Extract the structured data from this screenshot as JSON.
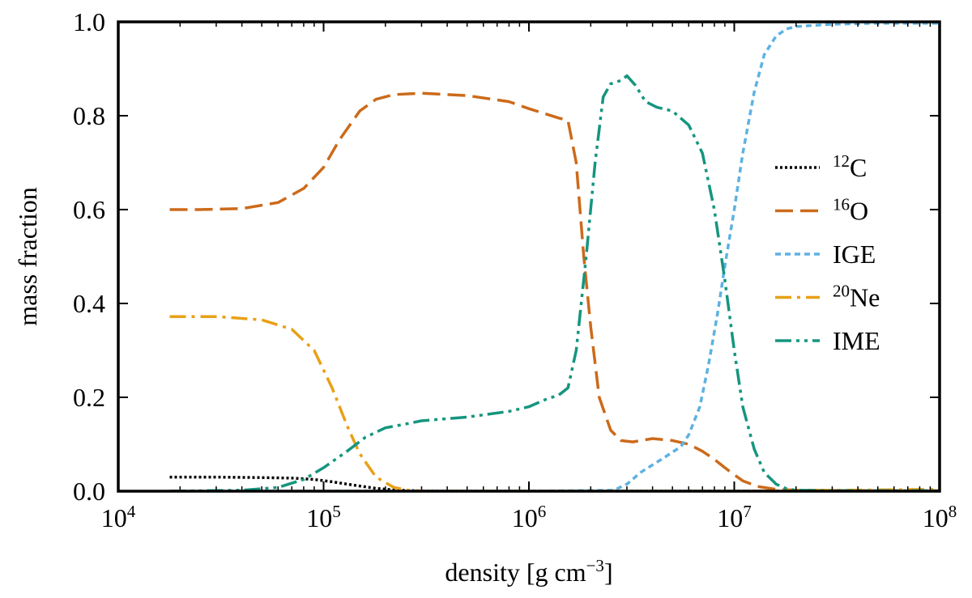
{
  "chart_data": {
    "type": "line",
    "title": "",
    "xlabel": "density [g cm",
    "xlabel_exp": "−3",
    "xlabel_suffix": "]",
    "ylabel": "mass fraction",
    "xscale": "log",
    "xlim": [
      10000,
      100000000
    ],
    "ylim": [
      0,
      1
    ],
    "grid": false,
    "legend_position": "right",
    "x_ticks": [
      {
        "value": 10000,
        "base": "10",
        "exp": "4"
      },
      {
        "value": 100000,
        "base": "10",
        "exp": "5"
      },
      {
        "value": 1000000,
        "base": "10",
        "exp": "6"
      },
      {
        "value": 10000000,
        "base": "10",
        "exp": "7"
      },
      {
        "value": 100000000,
        "base": "10",
        "exp": "8"
      }
    ],
    "y_ticks": [
      {
        "value": 0.0,
        "label": "0.0"
      },
      {
        "value": 0.2,
        "label": "0.2"
      },
      {
        "value": 0.4,
        "label": "0.4"
      },
      {
        "value": 0.6,
        "label": "0.6"
      },
      {
        "value": 0.8,
        "label": "0.8"
      },
      {
        "value": 1.0,
        "label": "1.0"
      }
    ],
    "series": [
      {
        "key": "c12",
        "name_sup": "12",
        "name": "C",
        "color": "#000000",
        "dash": "dotted",
        "x": [
          17800,
          30000,
          50000,
          70000,
          90000,
          110000,
          140000,
          180000,
          230000,
          300000,
          500000,
          1000000,
          3000000,
          10000000,
          100000000
        ],
        "y": [
          0.03,
          0.03,
          0.029,
          0.028,
          0.025,
          0.02,
          0.013,
          0.006,
          0.002,
          0.0005,
          0.0,
          0.0,
          0.0,
          0.0,
          0.0
        ]
      },
      {
        "key": "o16",
        "name_sup": "16",
        "name": "O",
        "color": "#CC6A1A",
        "dash": "long-dash",
        "x": [
          17800,
          25000,
          40000,
          60000,
          80000,
          100000,
          120000,
          150000,
          180000,
          220000,
          300000,
          500000,
          800000,
          1000000,
          1400000,
          1550000,
          1700000,
          1850000,
          2000000,
          2200000,
          2500000,
          2800000,
          3200000,
          4000000,
          5000000,
          6000000,
          7000000,
          8000000,
          9000000,
          10000000,
          11000000,
          13000000,
          16000000,
          20000000,
          50000000,
          100000000
        ],
        "y": [
          0.6,
          0.6,
          0.602,
          0.615,
          0.645,
          0.69,
          0.75,
          0.81,
          0.835,
          0.845,
          0.848,
          0.843,
          0.83,
          0.815,
          0.795,
          0.79,
          0.7,
          0.5,
          0.35,
          0.2,
          0.13,
          0.108,
          0.105,
          0.112,
          0.108,
          0.1,
          0.085,
          0.068,
          0.05,
          0.035,
          0.022,
          0.01,
          0.004,
          0.002,
          0.001,
          0.001
        ]
      },
      {
        "key": "ige",
        "name": "IGE",
        "color": "#5DB2E2",
        "dash": "short-dash",
        "x": [
          17800,
          100000,
          1000000,
          2600000,
          3000000,
          3500000,
          4500000,
          5500000,
          6000000,
          6800000,
          7500000,
          8300000,
          9000000,
          10000000,
          11000000,
          12500000,
          14000000,
          16000000,
          18000000,
          20000000,
          30000000,
          50000000,
          100000000
        ],
        "y": [
          0.0,
          0.0,
          0.0,
          0.002,
          0.015,
          0.04,
          0.07,
          0.095,
          0.12,
          0.18,
          0.27,
          0.38,
          0.48,
          0.6,
          0.72,
          0.85,
          0.93,
          0.97,
          0.985,
          0.99,
          0.995,
          0.997,
          0.997
        ]
      },
      {
        "key": "ne20",
        "name_sup": "20",
        "name": "Ne",
        "color": "#E8A017",
        "dash": "dash-dot",
        "x": [
          17800,
          30000,
          50000,
          70000,
          90000,
          110000,
          130000,
          150000,
          180000,
          220000,
          260000,
          300000,
          500000,
          1000000,
          10000000,
          100000000
        ],
        "y": [
          0.372,
          0.372,
          0.365,
          0.345,
          0.3,
          0.22,
          0.14,
          0.08,
          0.03,
          0.008,
          0.002,
          0.0,
          0.0,
          0.0,
          0.0,
          0.004
        ]
      },
      {
        "key": "ime",
        "name": "IME",
        "color": "#15957F",
        "dash": "dash-dot-dot",
        "x": [
          17800,
          40000,
          60000,
          80000,
          100000,
          130000,
          160000,
          200000,
          250000,
          300000,
          500000,
          800000,
          1000000,
          1200000,
          1400000,
          1550000,
          1700000,
          1900000,
          2100000,
          2300000,
          2500000,
          2800000,
          3000000,
          3300000,
          3700000,
          4200000,
          5000000,
          6000000,
          7000000,
          8000000,
          9000000,
          10000000,
          11000000,
          12500000,
          14000000,
          16000000,
          18000000,
          20000000,
          30000000,
          100000000
        ],
        "y": [
          0.0,
          0.002,
          0.008,
          0.025,
          0.05,
          0.085,
          0.115,
          0.135,
          0.143,
          0.15,
          0.158,
          0.17,
          0.18,
          0.195,
          0.205,
          0.22,
          0.3,
          0.5,
          0.7,
          0.84,
          0.868,
          0.875,
          0.885,
          0.865,
          0.83,
          0.818,
          0.81,
          0.78,
          0.72,
          0.6,
          0.45,
          0.3,
          0.18,
          0.09,
          0.04,
          0.015,
          0.005,
          0.002,
          0.001,
          0.001
        ]
      }
    ]
  }
}
